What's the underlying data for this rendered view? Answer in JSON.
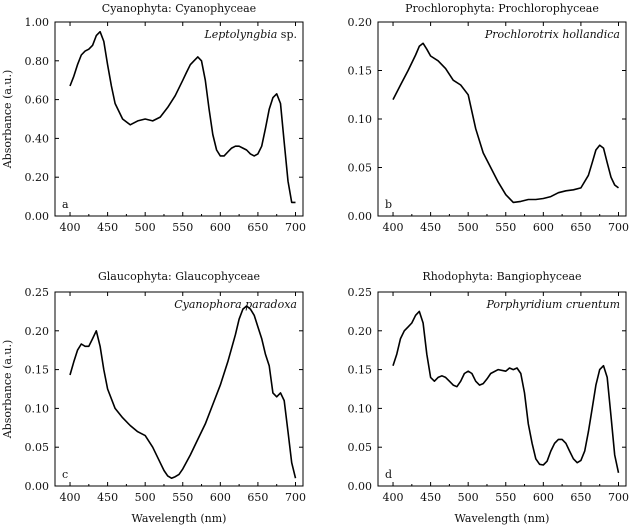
{
  "chart_data": [
    {
      "type": "line",
      "panel_letter": "a",
      "title": "Cyanophyta: Cyanophyceae",
      "annotation_italic": "Leptolyngbia",
      "annotation_plain": " sp.",
      "xlabel": "",
      "ylabel": "Absorbance (a.u.)",
      "xlim": [
        380,
        710
      ],
      "ylim": [
        0.0,
        1.0
      ],
      "xticks": [
        400,
        450,
        500,
        550,
        600,
        650,
        700
      ],
      "yticks": [
        0.0,
        0.2,
        0.4,
        0.6,
        0.8,
        1.0
      ],
      "ytick_labels": [
        "0.00",
        "0.20",
        "0.40",
        "0.60",
        "0.80",
        "1.00"
      ],
      "grid": false,
      "series": [
        {
          "x": [
            400,
            405,
            410,
            415,
            420,
            425,
            430,
            435,
            440,
            445,
            450,
            455,
            460,
            470,
            480,
            490,
            500,
            510,
            520,
            530,
            540,
            550,
            555,
            560,
            565,
            570,
            575,
            580,
            585,
            590,
            595,
            600,
            605,
            610,
            615,
            620,
            625,
            630,
            635,
            640,
            645,
            650,
            655,
            660,
            665,
            670,
            675,
            680,
            685,
            690,
            695,
            700
          ],
          "y": [
            0.67,
            0.72,
            0.78,
            0.83,
            0.85,
            0.86,
            0.88,
            0.93,
            0.95,
            0.9,
            0.78,
            0.67,
            0.58,
            0.5,
            0.47,
            0.49,
            0.5,
            0.49,
            0.51,
            0.56,
            0.62,
            0.7,
            0.74,
            0.78,
            0.8,
            0.82,
            0.8,
            0.7,
            0.55,
            0.42,
            0.34,
            0.31,
            0.31,
            0.33,
            0.35,
            0.36,
            0.36,
            0.35,
            0.34,
            0.32,
            0.31,
            0.32,
            0.36,
            0.45,
            0.55,
            0.61,
            0.63,
            0.58,
            0.38,
            0.18,
            0.07,
            0.07
          ]
        }
      ]
    },
    {
      "type": "line",
      "panel_letter": "b",
      "title": "Prochlorophyta: Prochlorophyceae",
      "annotation_italic": "Prochlorotrix hollandica",
      "annotation_plain": "",
      "xlabel": "",
      "ylabel": "",
      "xlim": [
        380,
        710
      ],
      "ylim": [
        0.0,
        0.2
      ],
      "xticks": [
        400,
        450,
        500,
        550,
        600,
        650,
        700
      ],
      "yticks": [
        0.0,
        0.05,
        0.1,
        0.15,
        0.2
      ],
      "ytick_labels": [
        "0.00",
        "0.05",
        "0.10",
        "0.15",
        "0.20"
      ],
      "grid": false,
      "series": [
        {
          "x": [
            400,
            410,
            420,
            430,
            435,
            440,
            445,
            450,
            460,
            470,
            480,
            490,
            500,
            510,
            520,
            530,
            540,
            550,
            560,
            570,
            580,
            590,
            600,
            610,
            620,
            630,
            640,
            650,
            660,
            665,
            670,
            675,
            680,
            685,
            690,
            695,
            700
          ],
          "y": [
            0.12,
            0.135,
            0.15,
            0.166,
            0.175,
            0.178,
            0.172,
            0.165,
            0.16,
            0.152,
            0.14,
            0.135,
            0.125,
            0.09,
            0.065,
            0.05,
            0.035,
            0.022,
            0.014,
            0.015,
            0.017,
            0.017,
            0.018,
            0.02,
            0.024,
            0.026,
            0.027,
            0.029,
            0.042,
            0.055,
            0.068,
            0.073,
            0.07,
            0.055,
            0.04,
            0.032,
            0.029
          ]
        }
      ]
    },
    {
      "type": "line",
      "panel_letter": "c",
      "title": "Glaucophyta: Glaucophyceae",
      "annotation_italic": "Cyanophora paradoxa",
      "annotation_plain": "",
      "xlabel": "Wavelength (nm)",
      "ylabel": "Absorbance (a.u.)",
      "xlim": [
        380,
        710
      ],
      "ylim": [
        0.0,
        0.25
      ],
      "xticks": [
        400,
        450,
        500,
        550,
        600,
        650,
        700
      ],
      "yticks": [
        0.0,
        0.05,
        0.1,
        0.15,
        0.2,
        0.25
      ],
      "ytick_labels": [
        "0.00",
        "0.05",
        "0.10",
        "0.15",
        "0.20",
        "0.25"
      ],
      "grid": false,
      "series": [
        {
          "x": [
            400,
            405,
            410,
            415,
            420,
            425,
            430,
            435,
            440,
            445,
            450,
            460,
            470,
            480,
            490,
            500,
            510,
            520,
            525,
            530,
            535,
            540,
            545,
            550,
            560,
            570,
            580,
            590,
            600,
            610,
            620,
            625,
            630,
            635,
            640,
            645,
            650,
            655,
            660,
            665,
            670,
            675,
            680,
            685,
            690,
            695,
            700
          ],
          "y": [
            0.143,
            0.16,
            0.175,
            0.183,
            0.18,
            0.18,
            0.19,
            0.2,
            0.18,
            0.15,
            0.125,
            0.1,
            0.088,
            0.078,
            0.07,
            0.065,
            0.05,
            0.03,
            0.02,
            0.013,
            0.01,
            0.012,
            0.015,
            0.022,
            0.04,
            0.06,
            0.08,
            0.105,
            0.13,
            0.16,
            0.195,
            0.215,
            0.228,
            0.232,
            0.228,
            0.22,
            0.205,
            0.19,
            0.17,
            0.155,
            0.12,
            0.115,
            0.12,
            0.11,
            0.07,
            0.03,
            0.01
          ]
        }
      ]
    },
    {
      "type": "line",
      "panel_letter": "d",
      "title": "Rhodophyta: Bangiophyceae",
      "annotation_italic": "Porphyridium cruentum",
      "annotation_plain": "",
      "xlabel": "Wavelength (nm)",
      "ylabel": "",
      "xlim": [
        380,
        710
      ],
      "ylim": [
        0.0,
        0.25
      ],
      "xticks": [
        400,
        450,
        500,
        550,
        600,
        650,
        700
      ],
      "yticks": [
        0.0,
        0.05,
        0.1,
        0.15,
        0.2,
        0.25
      ],
      "ytick_labels": [
        "0.00",
        "0.05",
        "0.10",
        "0.15",
        "0.20",
        "0.25"
      ],
      "grid": false,
      "series": [
        {
          "x": [
            400,
            405,
            410,
            415,
            420,
            425,
            430,
            435,
            440,
            445,
            450,
            455,
            460,
            465,
            470,
            475,
            480,
            485,
            490,
            495,
            500,
            505,
            510,
            515,
            520,
            525,
            530,
            540,
            550,
            555,
            560,
            565,
            570,
            575,
            580,
            585,
            590,
            595,
            600,
            605,
            610,
            615,
            620,
            625,
            630,
            635,
            640,
            645,
            650,
            655,
            660,
            665,
            670,
            675,
            680,
            685,
            690,
            695,
            700
          ],
          "y": [
            0.155,
            0.17,
            0.19,
            0.2,
            0.205,
            0.21,
            0.22,
            0.225,
            0.21,
            0.17,
            0.14,
            0.135,
            0.14,
            0.142,
            0.14,
            0.135,
            0.13,
            0.128,
            0.135,
            0.145,
            0.148,
            0.145,
            0.135,
            0.13,
            0.132,
            0.138,
            0.145,
            0.15,
            0.148,
            0.152,
            0.15,
            0.152,
            0.145,
            0.12,
            0.08,
            0.055,
            0.035,
            0.028,
            0.027,
            0.032,
            0.045,
            0.055,
            0.06,
            0.06,
            0.055,
            0.045,
            0.035,
            0.03,
            0.033,
            0.045,
            0.07,
            0.1,
            0.13,
            0.15,
            0.155,
            0.14,
            0.09,
            0.04,
            0.017
          ]
        }
      ]
    }
  ]
}
